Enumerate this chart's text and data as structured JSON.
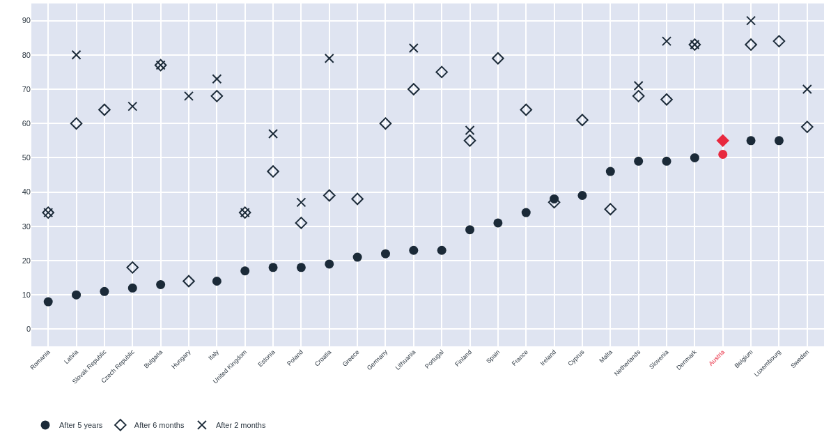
{
  "chart_data": {
    "type": "scatter",
    "categories": [
      "Romania",
      "Latvia",
      "Slovak Republic",
      "Czech Republic",
      "Bulgaria",
      "Hungary",
      "Italy",
      "United Kingdom",
      "Estonia",
      "Poland",
      "Croatia",
      "Greece",
      "Germany",
      "Lithuania",
      "Portugal",
      "Finland",
      "Spain",
      "France",
      "Ireland",
      "Cyprus",
      "Malta",
      "Netherlands",
      "Slovenia",
      "Denmark",
      "Austria",
      "Belgium",
      "Luxembourg",
      "Sweden"
    ],
    "series": [
      {
        "name": "After 5 years",
        "marker": "circle",
        "color": "#1b2a38",
        "colors": [
          "#1b2a38",
          "#1b2a38",
          "#1b2a38",
          "#1b2a38",
          "#1b2a38",
          "#1b2a38",
          "#1b2a38",
          "#1b2a38",
          "#1b2a38",
          "#1b2a38",
          "#1b2a38",
          "#1b2a38",
          "#1b2a38",
          "#1b2a38",
          "#1b2a38",
          "#1b2a38",
          "#1b2a38",
          "#1b2a38",
          "#1b2a38",
          "#1b2a38",
          "#1b2a38",
          "#1b2a38",
          "#1b2a38",
          "#1b2a38",
          "#e8293f",
          "#1b2a38",
          "#1b2a38",
          "#1b2a38"
        ],
        "values": [
          8,
          10,
          11,
          12,
          13,
          null,
          14,
          17,
          18,
          18,
          19,
          21,
          22,
          23,
          23,
          29,
          31,
          34,
          38,
          39,
          46,
          49,
          49,
          50,
          51,
          55,
          55,
          null
        ]
      },
      {
        "name": "After 6 months",
        "marker": "diamond",
        "color": "#1b2a38",
        "colors": [
          "#1b2a38",
          "#1b2a38",
          "#1b2a38",
          "#1b2a38",
          "#1b2a38",
          "#1b2a38",
          "#1b2a38",
          "#1b2a38",
          "#1b2a38",
          "#1b2a38",
          "#1b2a38",
          "#1b2a38",
          "#1b2a38",
          "#1b2a38",
          "#1b2a38",
          "#1b2a38",
          "#1b2a38",
          "#1b2a38",
          "#1b2a38",
          "#1b2a38",
          "#1b2a38",
          "#1b2a38",
          "#1b2a38",
          "#1b2a38",
          "#e8293f",
          "#1b2a38",
          "#1b2a38",
          "#1b2a38"
        ],
        "values": [
          34,
          60,
          64,
          18,
          77,
          14,
          68,
          34,
          46,
          31,
          39,
          38,
          60,
          70,
          75,
          55,
          79,
          64,
          37,
          61,
          35,
          68,
          67,
          83,
          55,
          83,
          84,
          59
        ]
      },
      {
        "name": "After 2 months",
        "marker": "cross",
        "color": "#1b2a38",
        "values": [
          34,
          80,
          null,
          65,
          77,
          68,
          73,
          34,
          57,
          37,
          79,
          null,
          null,
          82,
          null,
          58,
          null,
          null,
          null,
          null,
          null,
          71,
          84,
          83,
          null,
          90,
          null,
          70
        ]
      }
    ],
    "ylim": [
      -5,
      95
    ],
    "yticks": [
      0,
      10,
      20,
      30,
      40,
      50,
      60,
      70,
      80,
      90
    ],
    "grid": true,
    "legend": "bottom left"
  }
}
